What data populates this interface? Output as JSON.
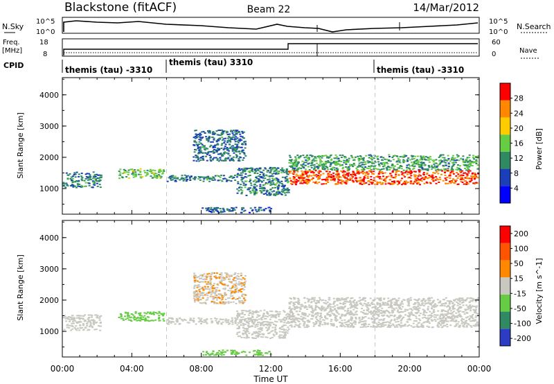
{
  "header": {
    "title": "Blackstone (fitACF)",
    "beam": "Beam 22",
    "date": "14/Mar/2012"
  },
  "top_panels": {
    "nsky_label": "N.Sky",
    "nsky_ticks": [
      "10^5",
      "10^0"
    ],
    "nsearch_label": "N.Search",
    "nsearch_ticks": [
      "10^5",
      "10^0"
    ],
    "freq_label": "Freq.",
    "freq_unit": "[MHz]",
    "freq_ticks": [
      "18",
      "8"
    ],
    "nave_label": "Nave",
    "nave_ticks": [
      "60",
      "0"
    ],
    "cpid_label": "CPID",
    "cpid_segments": [
      {
        "start_h": 0,
        "label": "themis (tau) -3310"
      },
      {
        "start_h": 6,
        "label": "themis (tau) 3310"
      },
      {
        "start_h": 18,
        "label": "themis (tau) -3310"
      }
    ]
  },
  "chart_data": [
    {
      "type": "heatmap",
      "title": "",
      "xlabel": "Time UT",
      "ylabel": "Slant Range [km]",
      "xlim": [
        0,
        24
      ],
      "ylim": [
        180,
        4550
      ],
      "x_ticks": [
        "00:00",
        "04:00",
        "08:00",
        "12:00",
        "16:00",
        "20:00",
        "00:00"
      ],
      "y_ticks": [
        "1000",
        "2000",
        "3000",
        "4000"
      ],
      "colorbar_label": "Power [dB]",
      "colorbar_ticks": [
        "4",
        "8",
        "12",
        "16",
        "20",
        "24",
        "28"
      ],
      "colorbar_range": [
        0,
        30
      ],
      "colors": [
        "#0000ff",
        "#1a3fb8",
        "#2f8a64",
        "#66cc44",
        "#ffcc00",
        "#ff8800",
        "#ff0000"
      ],
      "regions": [
        {
          "x0": 0.0,
          "x1": 2.2,
          "y0": 1050,
          "y1": 1550,
          "value": 10
        },
        {
          "x0": 3.2,
          "x1": 5.8,
          "y0": 1350,
          "y1": 1650,
          "value": 14
        },
        {
          "x0": 6.0,
          "x1": 10.0,
          "y0": 1250,
          "y1": 1450,
          "value": 10
        },
        {
          "x0": 7.5,
          "x1": 10.5,
          "y0": 1900,
          "y1": 2900,
          "value": 9
        },
        {
          "x0": 10.0,
          "x1": 13.0,
          "y0": 800,
          "y1": 1700,
          "value": 10
        },
        {
          "x0": 13.0,
          "x1": 23.9,
          "y0": 1600,
          "y1": 2100,
          "value": 12
        },
        {
          "x0": 13.0,
          "x1": 23.9,
          "y0": 1150,
          "y1": 1600,
          "value": 26
        },
        {
          "x0": 8.0,
          "x1": 12.0,
          "y0": 250,
          "y1": 420,
          "value": 8
        }
      ]
    },
    {
      "type": "heatmap",
      "title": "",
      "xlabel": "Time UT",
      "ylabel": "Slant Range [km]",
      "xlim": [
        0,
        24
      ],
      "ylim": [
        180,
        4550
      ],
      "x_ticks": [
        "00:00",
        "04:00",
        "08:00",
        "12:00",
        "16:00",
        "20:00",
        "00:00"
      ],
      "y_ticks": [
        "1000",
        "2000",
        "3000",
        "4000"
      ],
      "colorbar_label": "Velocity [m s^-1]",
      "colorbar_ticks": [
        "200",
        "100",
        "50",
        "15",
        "-15",
        "-50",
        "-100",
        "-200"
      ],
      "colorbar_range": [
        -250,
        250
      ],
      "colors": [
        "#2c3cc4",
        "#2f8a64",
        "#66cc44",
        "#c8c8c0",
        "#ff8800",
        "#ff5500",
        "#ff0000"
      ],
      "regions": [
        {
          "x0": 0.0,
          "x1": 2.2,
          "y0": 1050,
          "y1": 1550,
          "value": 0
        },
        {
          "x0": 3.2,
          "x1": 5.8,
          "y0": 1350,
          "y1": 1650,
          "value": -60
        },
        {
          "x0": 6.0,
          "x1": 10.0,
          "y0": 1250,
          "y1": 1450,
          "value": 0
        },
        {
          "x0": 7.5,
          "x1": 10.5,
          "y0": 1900,
          "y1": 2900,
          "value": 30
        },
        {
          "x0": 10.0,
          "x1": 13.0,
          "y0": 800,
          "y1": 1700,
          "value": 0
        },
        {
          "x0": 13.0,
          "x1": 23.9,
          "y0": 1600,
          "y1": 2100,
          "value": 0
        },
        {
          "x0": 13.0,
          "x1": 23.9,
          "y0": 1150,
          "y1": 1600,
          "value": 0
        },
        {
          "x0": 8.0,
          "x1": 12.0,
          "y0": 250,
          "y1": 420,
          "value": -60
        }
      ]
    }
  ]
}
